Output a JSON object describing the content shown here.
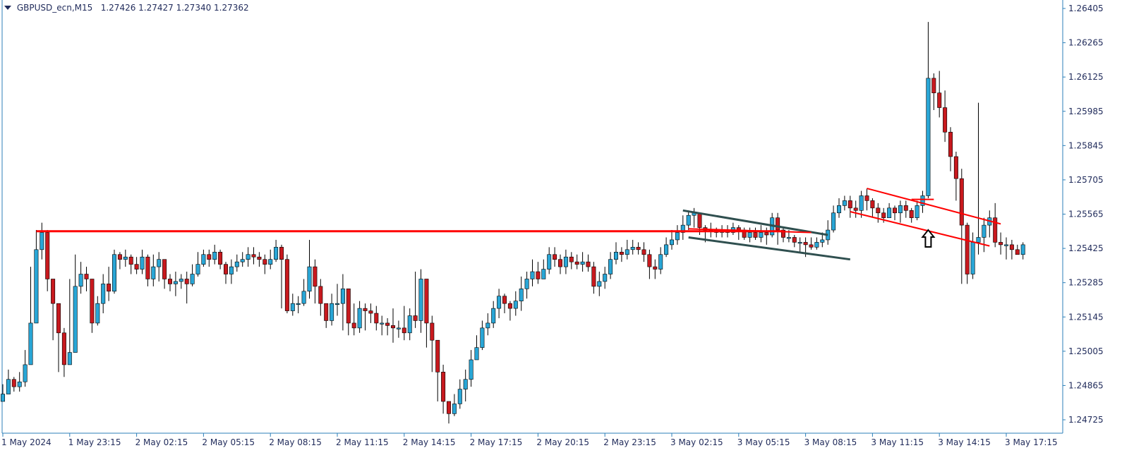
{
  "header": {
    "symbol": "GBPUSD_ecn,M15",
    "ohlc": "1.27426 1.27427 1.27340 1.27362"
  },
  "colors": {
    "bull": "#29a6d6",
    "bear": "#c8191e",
    "wick": "#000000",
    "axis": "#2c7fb8",
    "level_line": "#ff0000",
    "channel_dark": "#2f4f4f",
    "channel_red": "#ff0000"
  },
  "chart_data": {
    "type": "candlestick",
    "title": "",
    "y_ticks": [
      "1.26405",
      "1.26265",
      "1.26125",
      "1.25985",
      "1.25845",
      "1.25705",
      "1.25565",
      "1.25425",
      "1.25285",
      "1.25145",
      "1.25005",
      "1.24865",
      "1.24725"
    ],
    "ylim": [
      1.2468,
      1.2645
    ],
    "x_ticks": [
      {
        "label": "1 May 2024",
        "bar": 0
      },
      {
        "label": "1 May 23:15",
        "bar": 12
      },
      {
        "label": "2 May 02:15",
        "bar": 24
      },
      {
        "label": "2 May 05:15",
        "bar": 36
      },
      {
        "label": "2 May 08:15",
        "bar": 48
      },
      {
        "label": "2 May 11:15",
        "bar": 60
      },
      {
        "label": "2 May 14:15",
        "bar": 72
      },
      {
        "label": "2 May 17:15",
        "bar": 84
      },
      {
        "label": "2 May 20:15",
        "bar": 96
      },
      {
        "label": "2 May 23:15",
        "bar": 108
      },
      {
        "label": "3 May 02:15",
        "bar": 120
      },
      {
        "label": "3 May 05:15",
        "bar": 132
      },
      {
        "label": "3 May 08:15",
        "bar": 144
      },
      {
        "label": "3 May 11:15",
        "bar": 156
      },
      {
        "label": "3 May 14:15",
        "bar": 168
      },
      {
        "label": "3 May 17:15",
        "bar": 180
      }
    ],
    "closes": [
      1.2483,
      1.2489,
      1.2486,
      1.2488,
      1.2495,
      1.2512,
      1.2542,
      1.2549,
      1.253,
      1.252,
      1.2508,
      1.2495,
      1.25,
      1.2527,
      1.2532,
      1.253,
      1.2512,
      1.252,
      1.2528,
      1.2525,
      1.254,
      1.2538,
      1.2539,
      1.2536,
      1.2534,
      1.2539,
      1.253,
      1.2535,
      1.2538,
      1.253,
      1.2528,
      1.2529,
      1.253,
      1.2528,
      1.2532,
      1.2536,
      1.254,
      1.2538,
      1.2541,
      1.2536,
      1.2532,
      1.2535,
      1.2537,
      1.2538,
      1.254,
      1.2539,
      1.2538,
      1.2536,
      1.2538,
      1.2543,
      1.2538,
      1.2517,
      1.252,
      1.252,
      1.2525,
      1.2535,
      1.2527,
      1.252,
      1.2513,
      1.252,
      1.252,
      1.2526,
      1.2512,
      1.251,
      1.2518,
      1.2517,
      1.2516,
      1.2512,
      1.2512,
      1.2511,
      1.251,
      1.251,
      1.2508,
      1.2515,
      1.2513,
      1.253,
      1.2512,
      1.2505,
      1.2492,
      1.248,
      1.2475,
      1.2479,
      1.2485,
      1.2489,
      1.2497,
      1.2502,
      1.251,
      1.2512,
      1.2518,
      1.2523,
      1.252,
      1.2518,
      1.2521,
      1.2526,
      1.253,
      1.2533,
      1.253,
      1.2534,
      1.254,
      1.2538,
      1.2535,
      1.2539,
      1.2537,
      1.2536,
      1.2537,
      1.2535,
      1.2527,
      1.2529,
      1.2532,
      1.2538,
      1.2541,
      1.254,
      1.2542,
      1.2543,
      1.2542,
      1.254,
      1.2535,
      1.2534,
      1.254,
      1.2544,
      1.2546,
      1.2549,
      1.2552,
      1.2556,
      1.2557,
      1.2551,
      1.255,
      1.255,
      1.2549,
      1.255,
      1.2549,
      1.2551,
      1.255,
      1.2547,
      1.2549,
      1.2547,
      1.2549,
      1.2548,
      1.2555,
      1.255,
      1.2547,
      1.2547,
      1.2545,
      1.2545,
      1.2544,
      1.2543,
      1.2545,
      1.2546,
      1.255,
      1.2557,
      1.256,
      1.2562,
      1.2559,
      1.2558,
      1.2564,
      1.2562,
      1.2559,
      1.2557,
      1.2555,
      1.2559,
      1.2557,
      1.256,
      1.2558,
      1.2555,
      1.256,
      1.2564,
      1.2612,
      1.2606,
      1.26,
      1.259,
      1.258,
      1.2571,
      1.2552,
      1.2532,
      1.2545,
      1.2547,
      1.2552,
      1.2555,
      1.2545,
      1.2544,
      1.2544,
      1.2542,
      1.254,
      1.2544
    ],
    "highs": [
      1.2487,
      1.2493,
      1.249,
      1.2492,
      1.2501,
      1.2535,
      1.255,
      1.2553,
      1.255,
      1.253,
      1.2517,
      1.251,
      1.253,
      1.254,
      1.2537,
      1.2535,
      1.2518,
      1.2523,
      1.2532,
      1.2535,
      1.2542,
      1.2541,
      1.2542,
      1.254,
      1.2539,
      1.2542,
      1.254,
      1.254,
      1.2541,
      1.2535,
      1.2532,
      1.2533,
      1.2532,
      1.2533,
      1.2536,
      1.2541,
      1.2542,
      1.2542,
      1.2544,
      1.2542,
      1.2537,
      1.2538,
      1.254,
      1.2541,
      1.2543,
      1.2543,
      1.2541,
      1.254,
      1.2542,
      1.2546,
      1.2544,
      1.254,
      1.2524,
      1.2523,
      1.253,
      1.2546,
      1.2538,
      1.253,
      1.252,
      1.2524,
      1.2528,
      1.2532,
      1.2525,
      1.252,
      1.2521,
      1.252,
      1.252,
      1.2519,
      1.2515,
      1.2514,
      1.2518,
      1.2513,
      1.2519,
      1.2518,
      1.2533,
      1.2534,
      1.253,
      1.2515,
      1.2505,
      1.2495,
      1.248,
      1.2483,
      1.2489,
      1.2493,
      1.2501,
      1.2507,
      1.2513,
      1.2516,
      1.2521,
      1.2526,
      1.2524,
      1.2521,
      1.2525,
      1.2531,
      1.2533,
      1.2538,
      1.2537,
      1.2538,
      1.2543,
      1.2543,
      1.254,
      1.2542,
      1.2541,
      1.254,
      1.2541,
      1.254,
      1.2537,
      1.2533,
      1.2535,
      1.2541,
      1.2545,
      1.2543,
      1.2546,
      1.2546,
      1.2545,
      1.2545,
      1.2542,
      1.2538,
      1.2543,
      1.2547,
      1.255,
      1.2552,
      1.2556,
      1.2558,
      1.2559,
      1.2557,
      1.2552,
      1.2553,
      1.2551,
      1.2552,
      1.2552,
      1.2553,
      1.2552,
      1.2551,
      1.2551,
      1.2551,
      1.2552,
      1.2551,
      1.2557,
      1.2557,
      1.2551,
      1.255,
      1.2548,
      1.2547,
      1.2547,
      1.2547,
      1.2547,
      1.2549,
      1.2554,
      1.256,
      1.2563,
      1.2564,
      1.2564,
      1.2562,
      1.2566,
      1.2567,
      1.2563,
      1.2561,
      1.2559,
      1.2561,
      1.256,
      1.2562,
      1.2562,
      1.2559,
      1.2562,
      1.2566,
      1.2635,
      1.2614,
      1.2615,
      1.2607,
      1.2592,
      1.2582,
      1.2575,
      1.2553,
      1.2549,
      1.2602,
      1.2555,
      1.2558,
      1.2561,
      1.2549,
      1.2547,
      1.2546,
      1.2544,
      1.2545
    ],
    "lows": [
      1.248,
      1.2483,
      1.2484,
      1.2484,
      1.2486,
      1.2495,
      1.2512,
      1.2538,
      1.2525,
      1.2505,
      1.2492,
      1.249,
      1.2496,
      1.25,
      1.2524,
      1.2525,
      1.2508,
      1.2511,
      1.2516,
      1.2521,
      1.2524,
      1.2534,
      1.2535,
      1.2532,
      1.2532,
      1.2532,
      1.2527,
      1.2527,
      1.2529,
      1.2526,
      1.2525,
      1.2523,
      1.2526,
      1.252,
      1.2527,
      1.2531,
      1.2535,
      1.2535,
      1.2536,
      1.2534,
      1.2528,
      1.2528,
      1.2533,
      1.2535,
      1.2535,
      1.2536,
      1.2535,
      1.2532,
      1.2534,
      1.2537,
      1.2518,
      1.2516,
      1.2515,
      1.2516,
      1.2519,
      1.2522,
      1.252,
      1.2515,
      1.251,
      1.2511,
      1.2515,
      1.2509,
      1.2507,
      1.2507,
      1.2508,
      1.2509,
      1.2512,
      1.2509,
      1.2507,
      1.2507,
      1.2504,
      1.2506,
      1.2505,
      1.2505,
      1.251,
      1.2508,
      1.2502,
      1.2492,
      1.248,
      1.2475,
      1.2471,
      1.2474,
      1.2477,
      1.248,
      1.2486,
      1.2497,
      1.2501,
      1.2507,
      1.251,
      1.2514,
      1.2516,
      1.2513,
      1.2515,
      1.2517,
      1.2522,
      1.2527,
      1.2528,
      1.253,
      1.2532,
      1.2535,
      1.2532,
      1.2532,
      1.2534,
      1.2534,
      1.2533,
      1.2533,
      1.2524,
      1.2523,
      1.2526,
      1.253,
      1.2536,
      1.2537,
      1.2538,
      1.254,
      1.254,
      1.2537,
      1.253,
      1.253,
      1.2532,
      1.2539,
      1.2542,
      1.2544,
      1.2546,
      1.255,
      1.2551,
      1.2548,
      1.2545,
      1.2547,
      1.2547,
      1.2547,
      1.2547,
      1.2548,
      1.2546,
      1.2546,
      1.2545,
      1.2546,
      1.2545,
      1.2544,
      1.2547,
      1.2544,
      1.2545,
      1.2545,
      1.2543,
      1.2541,
      1.2539,
      1.2542,
      1.2542,
      1.2543,
      1.2544,
      1.2549,
      1.2555,
      1.2558,
      1.2555,
      1.2555,
      1.2555,
      1.2558,
      1.2555,
      1.2553,
      1.2553,
      1.2555,
      1.2554,
      1.2553,
      1.2555,
      1.2553,
      1.2554,
      1.2557,
      1.2563,
      1.2599,
      1.2596,
      1.2586,
      1.2574,
      1.2562,
      1.2528,
      1.2528,
      1.253,
      1.254,
      1.2541,
      1.2547,
      1.2543,
      1.254,
      1.2538,
      1.2538,
      1.254,
      1.2538
    ],
    "annotations": [
      {
        "type": "horizontal-level",
        "price": 1.25495,
        "from_bar": 6,
        "to_bar": 140,
        "color": "#ff0000"
      },
      {
        "type": "channel-line",
        "from": [
          122,
          1.2558
        ],
        "to": [
          148,
          1.2548
        ],
        "color": "#2f4f4f"
      },
      {
        "type": "channel-line",
        "from": [
          123,
          1.2547
        ],
        "to": [
          152,
          1.2538
        ],
        "color": "#2f4f4f"
      },
      {
        "type": "channel-line",
        "from": [
          123,
          1.25505
        ],
        "to": [
          145,
          1.2549
        ],
        "color": "#ff0000"
      },
      {
        "type": "channel-line",
        "from": [
          152,
          1.25575
        ],
        "to": [
          177,
          1.25435
        ],
        "color": "#ff0000"
      },
      {
        "type": "channel-line",
        "from": [
          155,
          1.2567
        ],
        "to": [
          179,
          1.25525
        ],
        "color": "#ff0000"
      },
      {
        "type": "segment",
        "from": [
          163,
          1.25625
        ],
        "to": [
          167,
          1.25625
        ],
        "color": "#ff0000"
      },
      {
        "type": "arrow-up",
        "bar": 166,
        "price": 1.2546
      }
    ]
  }
}
